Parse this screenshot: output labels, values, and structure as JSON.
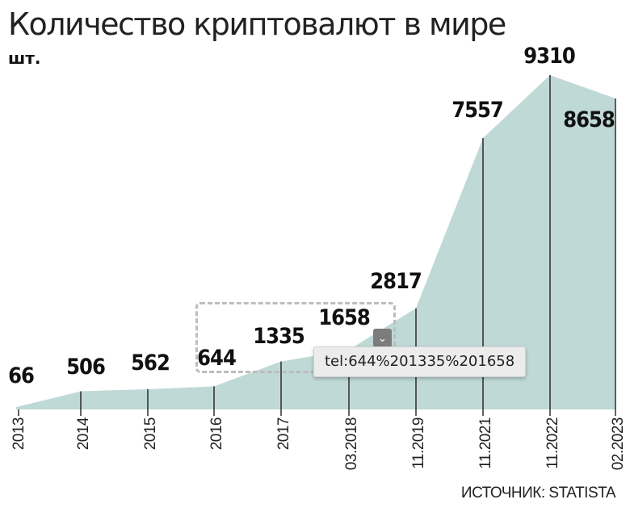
{
  "chart_data": {
    "type": "area",
    "title": "Количество криптовалют в мире",
    "unit": "шт.",
    "categories": [
      "2013",
      "2014",
      "2015",
      "2016",
      "2017",
      "03.2018",
      "11.2019",
      "11.2021",
      "11.2022",
      "02.2023"
    ],
    "values": [
      66,
      506,
      562,
      644,
      1335,
      1658,
      2817,
      7557,
      9310,
      8658
    ],
    "ylim": [
      0,
      9310
    ],
    "grid": false,
    "fill_color": "#bfd9d6",
    "line_color": "#111111",
    "source": "ИСТОЧНИК: STATISTA"
  },
  "overlay": {
    "chevron_icon": "chevron-down-icon",
    "tooltip": "tel:644%201335%201658"
  }
}
